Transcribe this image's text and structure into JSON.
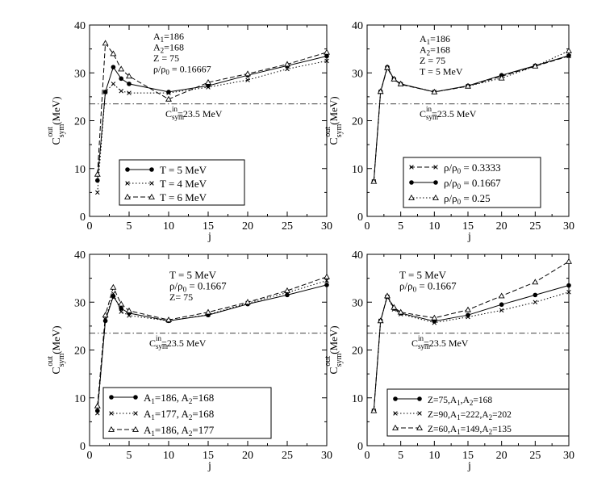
{
  "chart_data": [
    {
      "type": "line",
      "xlabel": "j",
      "ylabel": "C",
      "ylabel_sub": "sym",
      "ylabel_sup": "out",
      "ylabel_unit": "(MeV)",
      "xlim": [
        0,
        30
      ],
      "ylim": [
        0,
        40
      ],
      "xticks": [
        0,
        5,
        10,
        15,
        20,
        25,
        30
      ],
      "yticks": [
        0,
        10,
        20,
        30,
        40
      ],
      "reference_line": {
        "y": 23.5,
        "label": "C",
        "label_sub": "sym",
        "label_sup": "in",
        "label_rest": "=23.5 MeV"
      },
      "annotations": [
        {
          "main": "A",
          "sub": "1",
          "rest": "=186"
        },
        {
          "main": "A",
          "sub": "2",
          "rest": "=168"
        },
        {
          "main": "Z = 75"
        },
        {
          "main": "ρ/ρ",
          "sub": "0",
          "rest": " = 0.16667"
        }
      ],
      "series": [
        {
          "name": "T = 5 MeV",
          "style": "solid",
          "marker": "dot",
          "x": [
            1,
            2,
            3,
            4,
            5,
            10,
            15,
            20,
            25,
            30
          ],
          "y": [
            7.5,
            26.0,
            31.2,
            28.8,
            27.7,
            26.0,
            27.3,
            29.5,
            31.5,
            33.5
          ]
        },
        {
          "name": "T = 4 MeV",
          "style": "dotted",
          "marker": "x",
          "x": [
            1,
            2,
            3,
            4,
            5,
            10,
            15,
            20,
            25,
            30
          ],
          "y": [
            5.0,
            26.0,
            27.7,
            26.2,
            25.8,
            25.8,
            27.0,
            28.5,
            30.8,
            32.5
          ]
        },
        {
          "name": "T = 6 MeV",
          "style": "dashed",
          "marker": "triangle",
          "x": [
            1,
            2,
            3,
            4,
            5,
            10,
            15,
            20,
            25,
            30
          ],
          "y": [
            8.8,
            36.2,
            34.0,
            30.8,
            29.3,
            24.5,
            28.0,
            29.8,
            31.8,
            34.3
          ]
        }
      ]
    },
    {
      "type": "line",
      "xlabel": "j",
      "ylabel": "C",
      "ylabel_sub": "sym",
      "ylabel_sup": "out",
      "ylabel_unit": "(MeV)",
      "xlim": [
        0,
        30
      ],
      "ylim": [
        0,
        40
      ],
      "xticks": [
        0,
        5,
        10,
        15,
        20,
        25,
        30
      ],
      "yticks": [
        0,
        10,
        20,
        30,
        40
      ],
      "reference_line": {
        "y": 23.5,
        "label": "C",
        "label_sub": "sym",
        "label_sup": "in",
        "label_rest": "=23.5 MeV"
      },
      "annotations": [
        {
          "main": "A",
          "sub": "1",
          "rest": "=186"
        },
        {
          "main": "A",
          "sub": "2",
          "rest": "=168"
        },
        {
          "main": "Z = 75"
        },
        {
          "main": "T = 5 MeV"
        }
      ],
      "series": [
        {
          "name": "ρ/ρ",
          "name_sub": "0",
          "name_rest": " = 0.3333",
          "style": "dashed",
          "marker": "x",
          "x": [
            1,
            2,
            3,
            4,
            5,
            10,
            15,
            20,
            25,
            30
          ],
          "y": [
            7.3,
            26.0,
            31.0,
            28.6,
            27.6,
            26.0,
            27.2,
            29.3,
            31.4,
            33.5
          ]
        },
        {
          "name": "ρ/ρ",
          "name_sub": "0",
          "name_rest": " = 0.1667",
          "style": "solid",
          "marker": "dot",
          "x": [
            1,
            2,
            3,
            4,
            5,
            10,
            15,
            20,
            25,
            30
          ],
          "y": [
            7.3,
            26.1,
            31.2,
            28.7,
            27.7,
            26.0,
            27.3,
            29.5,
            31.5,
            33.6
          ]
        },
        {
          "name": "ρ/ρ",
          "name_sub": "0",
          "name_rest": " = 0.25",
          "style": "dotted",
          "marker": "triangle",
          "x": [
            1,
            2,
            3,
            4,
            5,
            10,
            15,
            20,
            25,
            30
          ],
          "y": [
            7.3,
            26.1,
            31.1,
            28.7,
            27.7,
            26.0,
            27.2,
            28.9,
            31.4,
            34.6
          ]
        }
      ]
    },
    {
      "type": "line",
      "xlabel": "j",
      "ylabel": "C",
      "ylabel_sub": "sym",
      "ylabel_sup": "out",
      "ylabel_unit": "(MeV)",
      "xlim": [
        0,
        30
      ],
      "ylim": [
        0,
        40
      ],
      "xticks": [
        0,
        5,
        10,
        15,
        20,
        25,
        30
      ],
      "yticks": [
        0,
        10,
        20,
        30,
        40
      ],
      "reference_line": {
        "y": 23.5,
        "label": "C",
        "label_sub": "sym",
        "label_sup": "in",
        "label_rest": "=23.5 MeV"
      },
      "annotations": [
        {
          "main": "T = 5 MeV"
        },
        {
          "main": "ρ/ρ",
          "sub": "0",
          "rest": " = 0.1667"
        },
        {
          "main": "Z= 75"
        }
      ],
      "series": [
        {
          "name": "A",
          "name_parts": [
            [
              "A",
              "1",
              "=186, "
            ],
            [
              "A",
              "2",
              "=168"
            ]
          ],
          "style": "solid",
          "marker": "dot",
          "x": [
            1,
            2,
            3,
            4,
            5,
            10,
            15,
            20,
            25,
            30
          ],
          "y": [
            7.3,
            26.1,
            31.2,
            28.7,
            27.7,
            26.1,
            27.3,
            29.6,
            31.5,
            33.6
          ]
        },
        {
          "name": "A",
          "name_parts": [
            [
              "A",
              "1",
              "=177, "
            ],
            [
              "A",
              "2",
              "=168"
            ]
          ],
          "style": "dotted",
          "marker": "x",
          "x": [
            1,
            2,
            3,
            4,
            5,
            10,
            15,
            20,
            25,
            30
          ],
          "y": [
            6.8,
            26.4,
            31.8,
            28.0,
            27.2,
            26.1,
            27.4,
            29.8,
            32.0,
            34.5
          ]
        },
        {
          "name": "A",
          "name_parts": [
            [
              "A",
              "1",
              "=186, "
            ],
            [
              "A",
              "2",
              "=177"
            ]
          ],
          "style": "dashed",
          "marker": "triangle",
          "x": [
            1,
            2,
            3,
            4,
            5,
            10,
            15,
            20,
            25,
            30
          ],
          "y": [
            8.3,
            27.3,
            33.1,
            29.6,
            28.2,
            26.3,
            27.9,
            30.0,
            32.4,
            35.3
          ]
        }
      ]
    },
    {
      "type": "line",
      "xlabel": "j",
      "ylabel": "C",
      "ylabel_sub": "sym",
      "ylabel_sup": "out",
      "ylabel_unit": "(MeV)",
      "xlim": [
        0,
        30
      ],
      "ylim": [
        0,
        40
      ],
      "xticks": [
        0,
        5,
        10,
        15,
        20,
        25,
        30
      ],
      "yticks": [
        0,
        10,
        20,
        30,
        40
      ],
      "reference_line": {
        "y": 23.5,
        "label": "C",
        "label_sub": "sym",
        "label_sup": "in",
        "label_rest": "=23.5 MeV"
      },
      "annotations": [
        {
          "main": "T = 5 MeV"
        },
        {
          "main": "ρ/ρ",
          "sub": "0",
          "rest": " = 0.1667"
        }
      ],
      "series": [
        {
          "name": "Z",
          "name_parts": [
            [
              "Z=75,A",
              "1",
              ",A"
            ],
            [
              "",
              "2",
              "=168"
            ]
          ],
          "style": "solid",
          "marker": "dot",
          "x": [
            1,
            2,
            3,
            4,
            5,
            10,
            15,
            20,
            25,
            30
          ],
          "y": [
            7.3,
            26.1,
            31.2,
            28.7,
            27.7,
            26.0,
            27.3,
            29.5,
            31.5,
            33.5
          ]
        },
        {
          "name": "Z",
          "name_parts": [
            [
              "Z=90,A",
              "1",
              "=222,A"
            ],
            [
              "",
              "2",
              "=202"
            ]
          ],
          "style": "dotted",
          "marker": "x",
          "x": [
            1,
            2,
            3,
            4,
            5,
            10,
            15,
            20,
            25,
            30
          ],
          "y": [
            7.3,
            26.1,
            31.1,
            28.5,
            27.5,
            25.7,
            26.9,
            28.3,
            30.0,
            32.1
          ]
        },
        {
          "name": "Z",
          "name_parts": [
            [
              "Z=60,A",
              "1",
              "=149,A"
            ],
            [
              "",
              "2",
              "=135"
            ]
          ],
          "style": "dashed",
          "marker": "triangle",
          "x": [
            1,
            2,
            3,
            4,
            5,
            10,
            15,
            20,
            25,
            30
          ],
          "y": [
            7.3,
            26.1,
            31.3,
            28.9,
            27.9,
            26.7,
            28.4,
            31.3,
            34.2,
            38.5
          ]
        }
      ]
    }
  ]
}
